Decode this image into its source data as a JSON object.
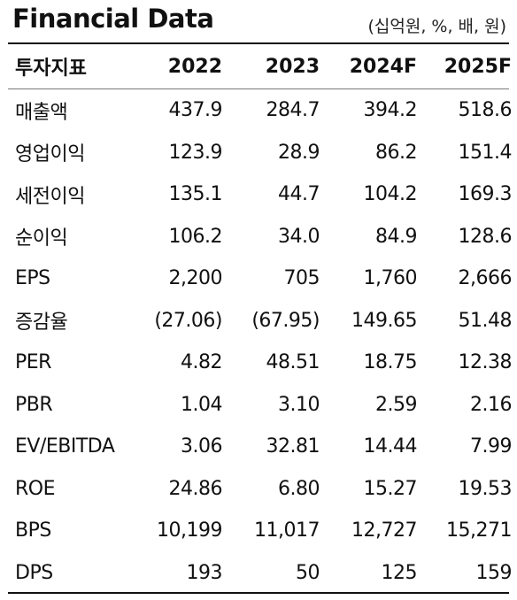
{
  "header": {
    "title": "Financial Data",
    "unit": "(십억원, %, 배, 원)"
  },
  "table": {
    "columns": [
      "투자지표",
      "2022",
      "2023",
      "2024F",
      "2025F"
    ],
    "rows": [
      {
        "label": "매출액",
        "values": [
          "437.9",
          "284.7",
          "394.2",
          "518.6"
        ]
      },
      {
        "label": "영업이익",
        "values": [
          "123.9",
          "28.9",
          "86.2",
          "151.4"
        ]
      },
      {
        "label": "세전이익",
        "values": [
          "135.1",
          "44.7",
          "104.2",
          "169.3"
        ]
      },
      {
        "label": "순이익",
        "values": [
          "106.2",
          "34.0",
          "84.9",
          "128.6"
        ]
      },
      {
        "label": "EPS",
        "values": [
          "2,200",
          "705",
          "1,760",
          "2,666"
        ]
      },
      {
        "label": "증감율",
        "values": [
          "(27.06)",
          "(67.95)",
          "149.65",
          "51.48"
        ]
      },
      {
        "label": "PER",
        "values": [
          "4.82",
          "48.51",
          "18.75",
          "12.38"
        ]
      },
      {
        "label": "PBR",
        "values": [
          "1.04",
          "3.10",
          "2.59",
          "2.16"
        ]
      },
      {
        "label": "EV/EBITDA",
        "values": [
          "3.06",
          "32.81",
          "14.44",
          "7.99"
        ]
      },
      {
        "label": "ROE",
        "values": [
          "24.86",
          "6.80",
          "15.27",
          "19.53"
        ]
      },
      {
        "label": "BPS",
        "values": [
          "10,199",
          "11,017",
          "12,727",
          "15,271"
        ]
      },
      {
        "label": "DPS",
        "values": [
          "193",
          "50",
          "125",
          "159"
        ]
      }
    ]
  }
}
